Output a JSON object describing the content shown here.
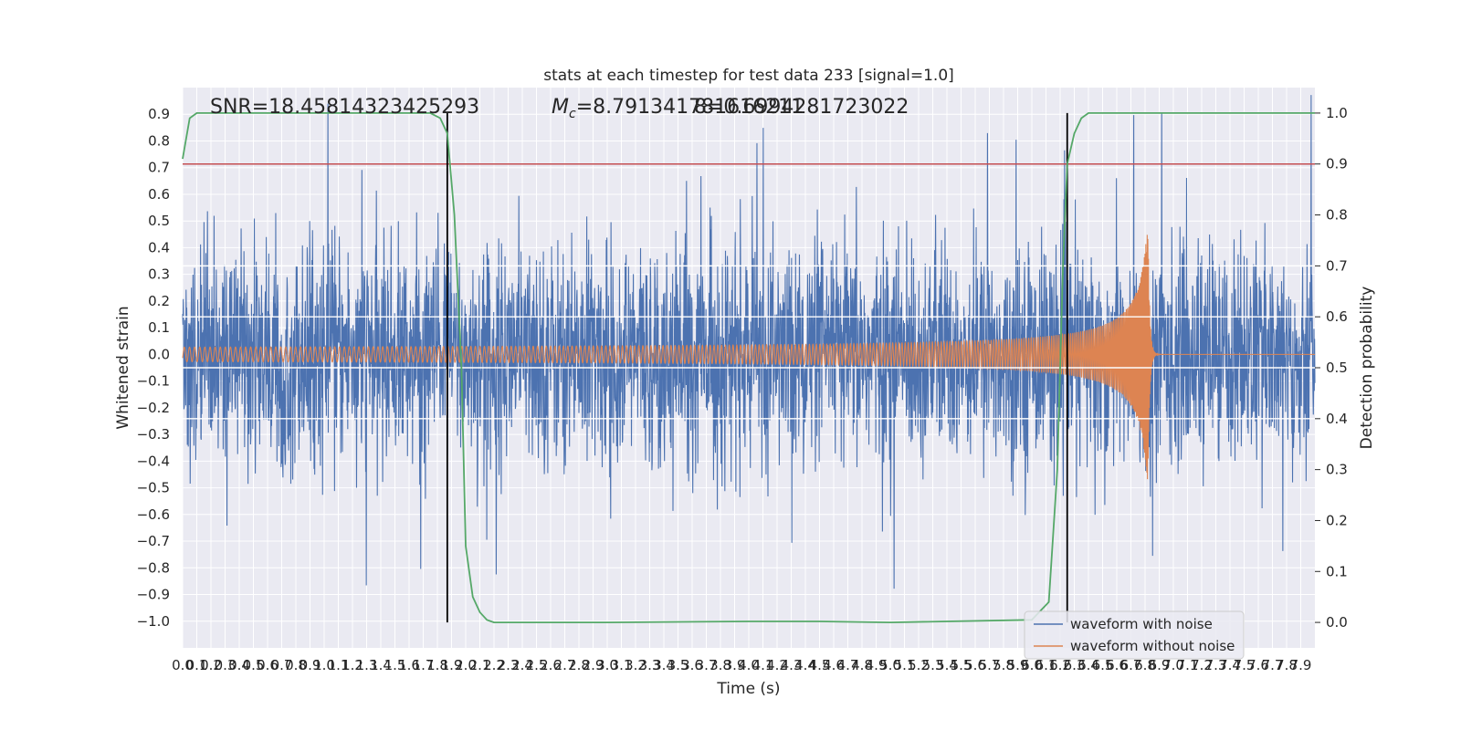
{
  "chart_data": {
    "type": "line",
    "title": "stats at each timestep for test data 233 [signal=1.0]",
    "xlabel": "Time (s)",
    "ylabel": "Whitened strain",
    "y2label": "Detection probability",
    "xlim": [
      0.0,
      8.0
    ],
    "ylim": [
      -1.1,
      1.0
    ],
    "y2lim": [
      -0.05,
      1.05
    ],
    "grid": true,
    "legend_position": "bottom-right",
    "xticks": [
      "0.0",
      "0.1",
      "0.2",
      "0.3",
      "0.4",
      "0.5",
      "0.6",
      "0.7",
      "0.8",
      "0.9",
      "1.0",
      "1.1",
      "1.2",
      "1.3",
      "1.4",
      "1.5",
      "1.6",
      "1.7",
      "1.8",
      "1.9",
      "2.0",
      "2.1",
      "2.2",
      "2.3",
      "2.4",
      "2.5",
      "2.6",
      "2.7",
      "2.8",
      "2.9",
      "3.0",
      "3.1",
      "3.2",
      "3.3",
      "3.4",
      "3.5",
      "3.6",
      "3.7",
      "3.8",
      "3.9",
      "4.0",
      "4.1",
      "4.2",
      "4.3",
      "4.4",
      "4.5",
      "4.6",
      "4.7",
      "4.8",
      "4.9",
      "5.0",
      "5.1",
      "5.2",
      "5.3",
      "5.4",
      "5.5",
      "5.6",
      "5.7",
      "5.8",
      "5.9",
      "6.0",
      "6.1",
      "6.2",
      "6.3",
      "6.4",
      "6.5",
      "6.6",
      "6.7",
      "6.8",
      "6.9",
      "7.0",
      "7.1",
      "7.2",
      "7.3",
      "7.4",
      "7.5",
      "7.6",
      "7.7",
      "7.8",
      "7.9"
    ],
    "yticks": [
      "0.9",
      "0.8",
      "0.7",
      "0.6",
      "0.5",
      "0.4",
      "0.3",
      "0.2",
      "0.1",
      "0.0",
      "−0.1",
      "−0.2",
      "−0.3",
      "−0.4",
      "−0.5",
      "−0.6",
      "−0.7",
      "−0.8",
      "−0.9",
      "−1.0"
    ],
    "y2ticks": [
      "1.0",
      "0.9",
      "0.8",
      "0.7",
      "0.6",
      "0.5",
      "0.4",
      "0.3",
      "0.2",
      "0.1",
      "0.0"
    ],
    "threshold": 0.9,
    "vertical_lines": [
      1.87,
      6.25
    ],
    "horizontal_white_lines": [
      0.7,
      0.6,
      0.5,
      0.4
    ],
    "annotations": {
      "snr": "SNR=18.45814323425293",
      "mc_symbol": "M",
      "mc_sub": "c",
      "mc_value": "=8.791341781616211",
      "overlap": "8=0.6994281723022"
    },
    "series": [
      {
        "name": "waveform with noise",
        "color": "#4c72b0",
        "description": "dense noisy strain, roughly ±0.45 with spikes"
      },
      {
        "name": "waveform without noise",
        "color": "#dd8452",
        "description": "chirp signal, amplitude grows to ~0.5 at merger ~6.8 s, then ringdown"
      },
      {
        "name": "detection probability",
        "color": "#55a868",
        "x": [
          0.0,
          0.05,
          0.1,
          1.75,
          1.82,
          1.87,
          1.92,
          1.97,
          2.0,
          2.05,
          2.1,
          2.15,
          2.2,
          2.3,
          3.0,
          4.0,
          4.5,
          5.0,
          6.0,
          6.12,
          6.18,
          6.22,
          6.25,
          6.3,
          6.35,
          6.4,
          6.5,
          8.0
        ],
        "values": [
          0.91,
          0.99,
          1.0,
          1.0,
          0.99,
          0.96,
          0.8,
          0.5,
          0.15,
          0.05,
          0.02,
          0.005,
          0.0,
          0.0,
          0.0,
          0.002,
          0.002,
          0.0,
          0.005,
          0.04,
          0.3,
          0.7,
          0.9,
          0.96,
          0.99,
          1.0,
          1.0,
          1.0
        ]
      }
    ]
  }
}
